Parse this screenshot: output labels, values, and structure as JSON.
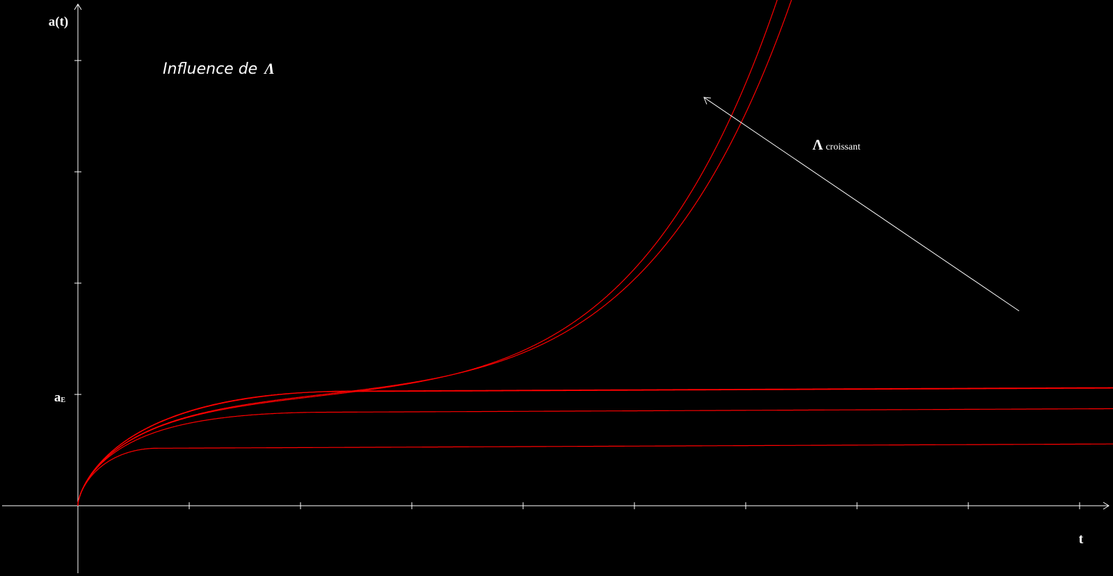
{
  "chart_data": {
    "type": "line",
    "title": "Influence de",
    "title_symbol": "Λ",
    "ylabel": "a(t)",
    "xlabel": "t",
    "y_marker": {
      "label": "a",
      "subscript": "E",
      "value": 1
    },
    "annotation": {
      "symbol": "Λ",
      "text": "croissant"
    },
    "x_ticks": [
      1,
      2,
      3,
      4,
      5,
      6,
      7,
      8,
      9
    ],
    "y_ticks": [
      1,
      2,
      3,
      4
    ],
    "xlim": [
      0,
      9.5
    ],
    "ylim": [
      0,
      4.5
    ],
    "grid": false,
    "legend": "none",
    "colors": {
      "background": "#000000",
      "axes": "#ffffff",
      "curves": "#ff0000",
      "annotation_arrow": "#ffffff",
      "text": "#ffffff"
    },
    "series": [
      {
        "k": 0.905
      },
      {
        "k": 0.935
      },
      {
        "k": 1.185
      },
      {
        "k": 1.214
      },
      {
        "k": 1.42
      },
      {
        "k": 1.93
      }
    ]
  }
}
